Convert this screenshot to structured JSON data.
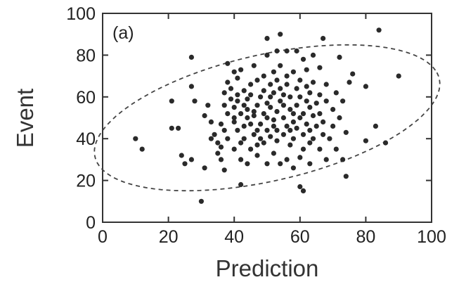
{
  "chart_data": {
    "type": "scatter",
    "panel_label": "(a)",
    "xlabel": "Prediction",
    "ylabel": "Event",
    "xlim": [
      0,
      100
    ],
    "ylim": [
      0,
      100
    ],
    "x_ticks": [
      "0",
      "20",
      "40",
      "60",
      "80",
      "100"
    ],
    "y_ticks": [
      "0",
      "20",
      "40",
      "60",
      "80",
      "100"
    ],
    "grid": false,
    "marker_color": "#2a2a2a",
    "ellipse": {
      "style": "dashed",
      "center": [
        50,
        50
      ],
      "semi_major": 56,
      "semi_minor": 29,
      "angle_deg": 24
    },
    "points": [
      [
        10,
        40
      ],
      [
        12,
        35
      ],
      [
        21,
        58
      ],
      [
        21,
        45
      ],
      [
        23,
        45
      ],
      [
        24,
        32
      ],
      [
        25,
        28
      ],
      [
        27,
        30
      ],
      [
        27,
        65
      ],
      [
        27,
        79
      ],
      [
        28,
        58
      ],
      [
        30,
        10
      ],
      [
        31,
        51
      ],
      [
        31,
        26
      ],
      [
        32,
        56
      ],
      [
        33,
        40
      ],
      [
        33,
        48
      ],
      [
        34,
        42
      ],
      [
        35,
        33
      ],
      [
        35,
        38
      ],
      [
        36,
        36
      ],
      [
        36,
        30
      ],
      [
        36,
        47
      ],
      [
        37,
        44
      ],
      [
        37,
        56
      ],
      [
        37,
        62
      ],
      [
        37,
        25
      ],
      [
        38,
        67
      ],
      [
        38,
        76
      ],
      [
        38,
        52
      ],
      [
        38,
        40
      ],
      [
        39,
        59
      ],
      [
        39,
        64
      ],
      [
        40,
        72
      ],
      [
        40,
        48
      ],
      [
        40,
        35
      ],
      [
        40,
        50
      ],
      [
        40,
        55
      ],
      [
        41,
        44
      ],
      [
        41,
        58
      ],
      [
        41,
        61
      ],
      [
        41,
        69
      ],
      [
        42,
        73
      ],
      [
        42,
        38
      ],
      [
        42,
        30
      ],
      [
        42,
        52
      ],
      [
        42,
        18
      ],
      [
        43,
        46
      ],
      [
        43,
        56
      ],
      [
        43,
        63
      ],
      [
        43,
        40
      ],
      [
        44,
        50
      ],
      [
        44,
        28
      ],
      [
        44,
        54
      ],
      [
        44,
        59
      ],
      [
        45,
        35
      ],
      [
        45,
        47
      ],
      [
        45,
        66
      ],
      [
        45,
        61
      ],
      [
        46,
        42
      ],
      [
        46,
        53
      ],
      [
        46,
        75
      ],
      [
        46,
        51
      ],
      [
        47,
        32
      ],
      [
        47,
        37
      ],
      [
        47,
        44
      ],
      [
        47,
        56
      ],
      [
        47,
        68
      ],
      [
        48,
        60
      ],
      [
        48,
        47
      ],
      [
        48,
        40
      ],
      [
        49,
        52
      ],
      [
        49,
        70
      ],
      [
        49,
        38
      ],
      [
        49,
        63
      ],
      [
        50,
        44
      ],
      [
        50,
        57
      ],
      [
        50,
        50
      ],
      [
        50,
        88
      ],
      [
        50,
        80
      ],
      [
        50,
        28
      ],
      [
        51,
        66
      ],
      [
        51,
        41
      ],
      [
        51,
        55
      ],
      [
        51,
        60
      ],
      [
        52,
        46
      ],
      [
        52,
        62
      ],
      [
        52,
        49
      ],
      [
        52,
        33
      ],
      [
        52,
        72
      ],
      [
        53,
        39
      ],
      [
        53,
        53
      ],
      [
        53,
        68
      ],
      [
        53,
        44
      ],
      [
        53,
        82
      ],
      [
        54,
        28
      ],
      [
        54,
        58
      ],
      [
        54,
        64
      ],
      [
        54,
        75
      ],
      [
        54,
        90
      ],
      [
        55,
        42
      ],
      [
        55,
        50
      ],
      [
        55,
        56
      ],
      [
        55,
        61
      ],
      [
        56,
        46
      ],
      [
        56,
        30
      ],
      [
        56,
        66
      ],
      [
        56,
        82
      ],
      [
        56,
        70
      ],
      [
        57,
        54
      ],
      [
        57,
        37
      ],
      [
        57,
        44
      ],
      [
        57,
        60
      ],
      [
        58,
        48
      ],
      [
        58,
        52
      ],
      [
        58,
        26
      ],
      [
        58,
        40
      ],
      [
        58,
        72
      ],
      [
        59,
        56
      ],
      [
        59,
        45
      ],
      [
        59,
        64
      ],
      [
        59,
        82
      ],
      [
        60,
        17
      ],
      [
        60,
        31
      ],
      [
        60,
        50
      ],
      [
        60,
        60
      ],
      [
        60,
        68
      ],
      [
        61,
        35
      ],
      [
        61,
        42
      ],
      [
        61,
        52
      ],
      [
        61,
        15
      ],
      [
        61,
        78
      ],
      [
        62,
        47
      ],
      [
        62,
        58
      ],
      [
        62,
        65
      ],
      [
        62,
        73
      ],
      [
        63,
        38
      ],
      [
        63,
        55
      ],
      [
        63,
        44
      ],
      [
        63,
        62
      ],
      [
        63,
        28
      ],
      [
        64,
        51
      ],
      [
        64,
        67
      ],
      [
        64,
        40
      ],
      [
        64,
        80
      ],
      [
        65,
        57
      ],
      [
        65,
        46
      ],
      [
        66,
        35
      ],
      [
        66,
        61
      ],
      [
        66,
        74
      ],
      [
        66,
        52
      ],
      [
        67,
        42
      ],
      [
        67,
        88
      ],
      [
        67,
        48
      ],
      [
        68,
        30
      ],
      [
        68,
        58
      ],
      [
        68,
        66
      ],
      [
        69,
        40
      ],
      [
        70,
        54
      ],
      [
        70,
        46
      ],
      [
        71,
        62
      ],
      [
        71,
        35
      ],
      [
        72,
        50
      ],
      [
        72,
        79
      ],
      [
        73,
        58
      ],
      [
        73,
        30
      ],
      [
        74,
        22
      ],
      [
        74,
        43
      ],
      [
        75,
        67
      ],
      [
        76,
        71
      ],
      [
        80,
        39
      ],
      [
        80,
        65
      ],
      [
        83,
        46
      ],
      [
        84,
        92
      ],
      [
        86,
        38
      ],
      [
        90,
        70
      ]
    ]
  }
}
